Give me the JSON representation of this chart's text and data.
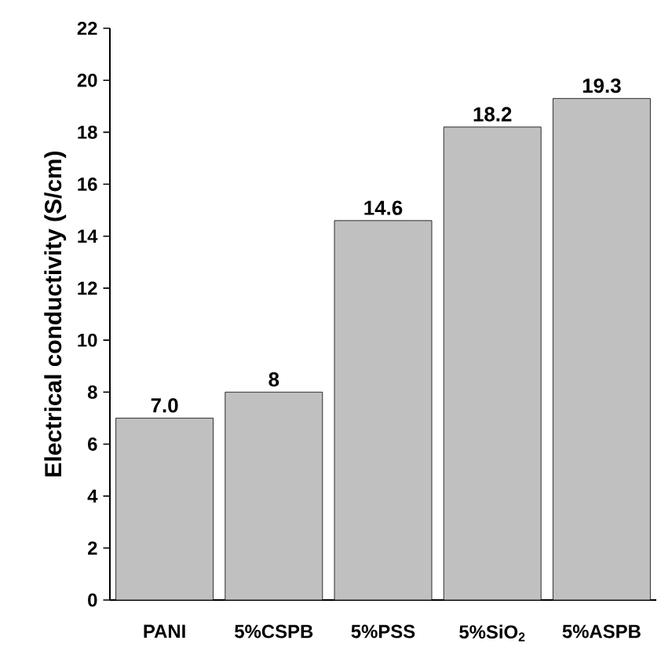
{
  "chart_data": {
    "type": "bar",
    "ylabel": "Electrical conductivity (S/cm)",
    "categories": [
      "PANI",
      "5%CSPB",
      "5%PSS",
      "5%SiO$_{2}$",
      "5%ASPB"
    ],
    "values": [
      7.0,
      8,
      14.6,
      18.2,
      19.3
    ],
    "value_labels": [
      "7.0",
      "8",
      "14.6",
      "18.2",
      "19.3"
    ],
    "color": "#c0c0c0",
    "ylim": [
      0,
      22
    ],
    "yticks": [
      0,
      2,
      4,
      6,
      8,
      10,
      12,
      14,
      16,
      18,
      20,
      22
    ],
    "grid": false
  }
}
